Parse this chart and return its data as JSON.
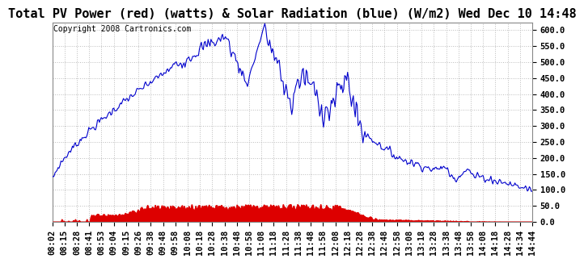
{
  "title": "Total PV Power (red) (watts) & Solar Radiation (blue) (W/m2) Wed Dec 10 14:48",
  "copyright": "Copyright 2008 Cartronics.com",
  "ylim": [
    0.0,
    625.0
  ],
  "yticks": [
    0.0,
    50.0,
    100.0,
    150.0,
    200.0,
    250.0,
    300.0,
    350.0,
    400.0,
    450.0,
    500.0,
    550.0,
    600.0
  ],
  "bg_color": "#ffffff",
  "plot_bg_color": "#ffffff",
  "grid_color": "#bbbbbb",
  "blue_color": "#0000cc",
  "red_color": "#dd0000",
  "title_fontsize": 11,
  "tick_fontsize": 7.5,
  "copyright_fontsize": 7,
  "xtick_labels": [
    "08:02",
    "08:15",
    "08:28",
    "08:41",
    "08:53",
    "09:04",
    "09:15",
    "09:26",
    "09:38",
    "09:48",
    "09:58",
    "10:08",
    "10:18",
    "10:28",
    "10:38",
    "10:48",
    "10:58",
    "11:08",
    "11:18",
    "11:28",
    "11:38",
    "11:48",
    "11:58",
    "12:08",
    "12:18",
    "12:28",
    "12:38",
    "12:48",
    "12:58",
    "13:08",
    "13:18",
    "13:28",
    "13:38",
    "13:48",
    "13:58",
    "14:08",
    "14:18",
    "14:28",
    "14:34",
    "14:44"
  ]
}
